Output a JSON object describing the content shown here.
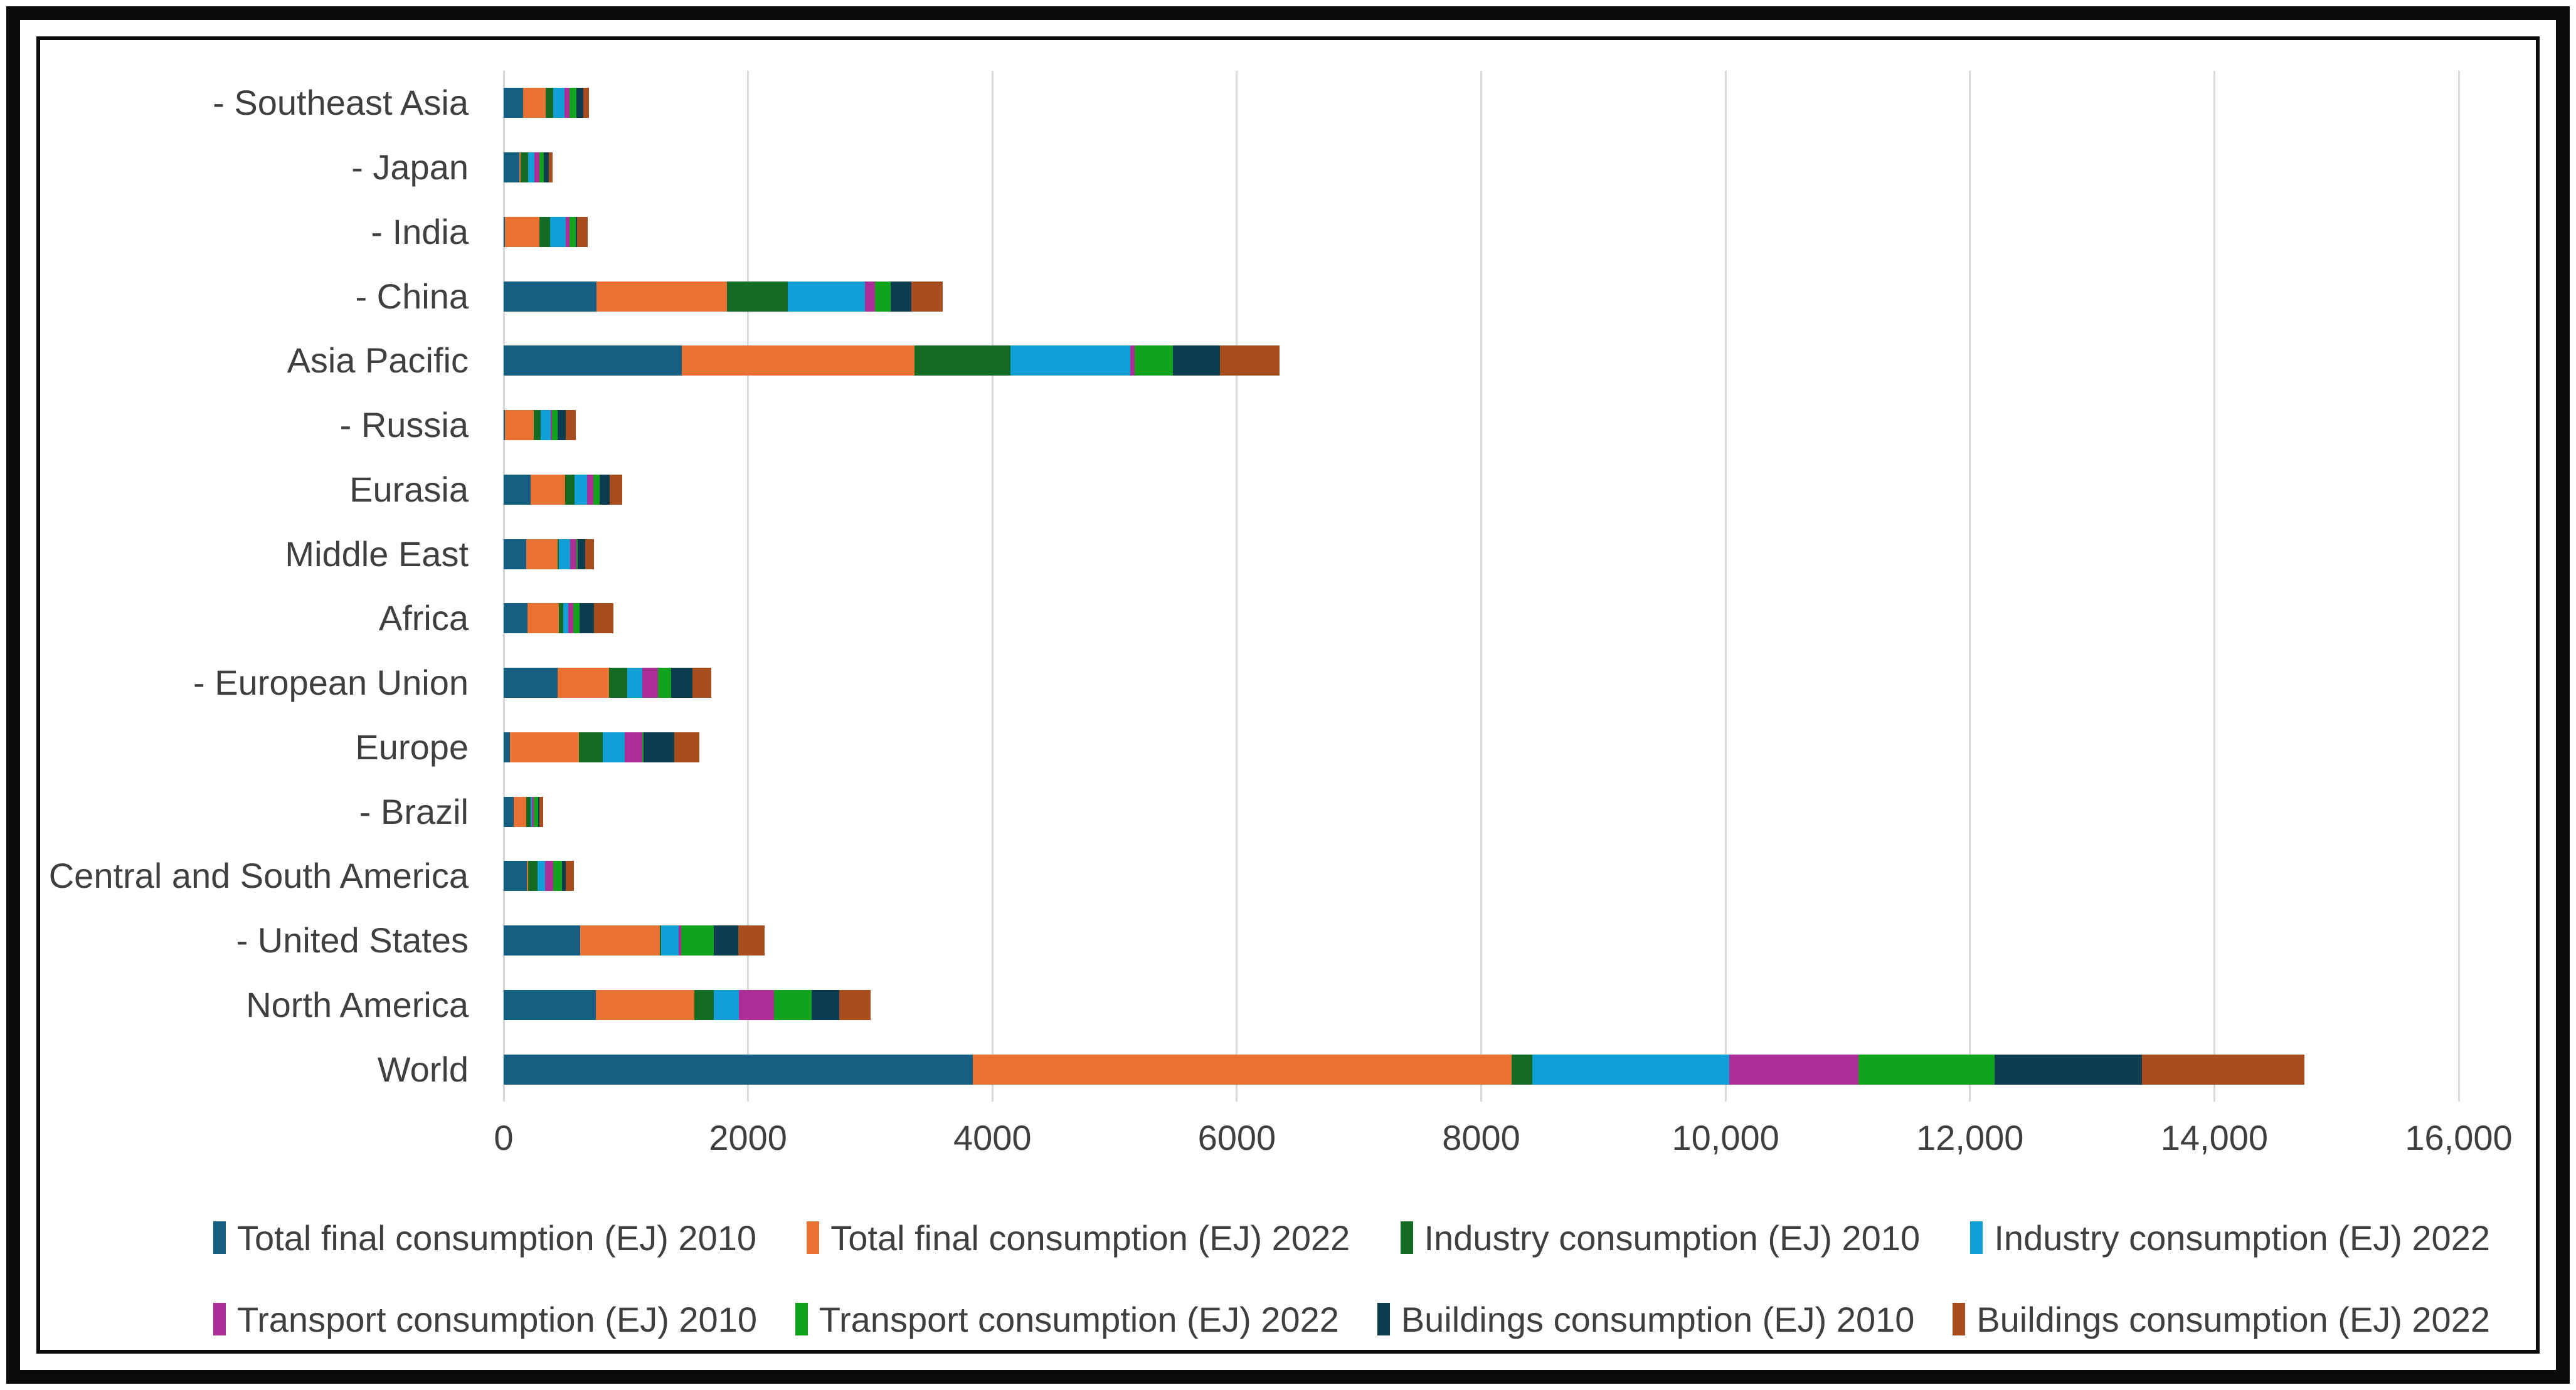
{
  "chart_data": {
    "type": "bar",
    "orientation": "horizontal",
    "stacked": true,
    "title": "",
    "xlabel": "",
    "ylabel": "",
    "xlim": [
      0,
      16000
    ],
    "grid": "vertical",
    "legend_position": "bottom",
    "x_ticks": [
      {
        "value": 0,
        "label": "0"
      },
      {
        "value": 2000,
        "label": "2000"
      },
      {
        "value": 4000,
        "label": "4000"
      },
      {
        "value": 6000,
        "label": "6000"
      },
      {
        "value": 8000,
        "label": "8000"
      },
      {
        "value": 10000,
        "label": "10,000"
      },
      {
        "value": 12000,
        "label": "12,000"
      },
      {
        "value": 14000,
        "label": "14,000"
      },
      {
        "value": 16000,
        "label": "16,000"
      }
    ],
    "categories": [
      "- Southeast Asia",
      "- Japan",
      "- India",
      "- China",
      "Asia Pacific",
      "- Russia",
      "Eurasia",
      "Middle East",
      "Africa",
      "- European Union",
      "Europe",
      "- Brazil",
      "Central and South America",
      "- United States",
      "North America",
      "World"
    ],
    "series": [
      {
        "name": "Total final consumption (EJ) 2010",
        "color": "#156082",
        "values": [
          160,
          130,
          10,
          760,
          1460,
          10,
          220,
          185,
          195,
          440,
          50,
          80,
          190,
          625,
          755,
          3840
        ]
      },
      {
        "name": "Total final consumption (EJ) 2022",
        "color": "#E97132",
        "values": [
          185,
          10,
          285,
          1070,
          1900,
          235,
          285,
          255,
          255,
          425,
          565,
          105,
          10,
          655,
          805,
          4410
        ]
      },
      {
        "name": "Industry consumption (EJ) 2010",
        "color": "#146B22",
        "values": [
          60,
          60,
          85,
          495,
          790,
          60,
          75,
          10,
          40,
          145,
          195,
          35,
          75,
          10,
          160,
          170
        ]
      },
      {
        "name": "Industry consumption (EJ) 2022",
        "color": "#0F9ED5",
        "values": [
          95,
          50,
          130,
          630,
          980,
          80,
          105,
          95,
          40,
          125,
          180,
          10,
          65,
          140,
          205,
          1610
        ]
      },
      {
        "name": "Transport consumption (EJ) 2010",
        "color": "#AC2D96",
        "values": [
          40,
          45,
          30,
          85,
          35,
          10,
          50,
          50,
          40,
          130,
          145,
          15,
          65,
          25,
          290,
          1060
        ]
      },
      {
        "name": "Transport consumption (EJ) 2022",
        "color": "#11A31C",
        "values": [
          55,
          35,
          50,
          130,
          310,
          45,
          50,
          10,
          50,
          105,
          10,
          40,
          75,
          265,
          305,
          1110
        ]
      },
      {
        "name": "Buildings consumption (EJ) 2010",
        "color": "#0C3C50",
        "values": [
          55,
          40,
          10,
          165,
          385,
          70,
          85,
          60,
          120,
          175,
          250,
          10,
          30,
          200,
          225,
          1210
        ]
      },
      {
        "name": "Buildings consumption (EJ) 2022",
        "color": "#A84D1E",
        "values": [
          50,
          30,
          90,
          260,
          490,
          80,
          100,
          75,
          160,
          155,
          205,
          30,
          65,
          215,
          260,
          1330
        ]
      }
    ]
  }
}
